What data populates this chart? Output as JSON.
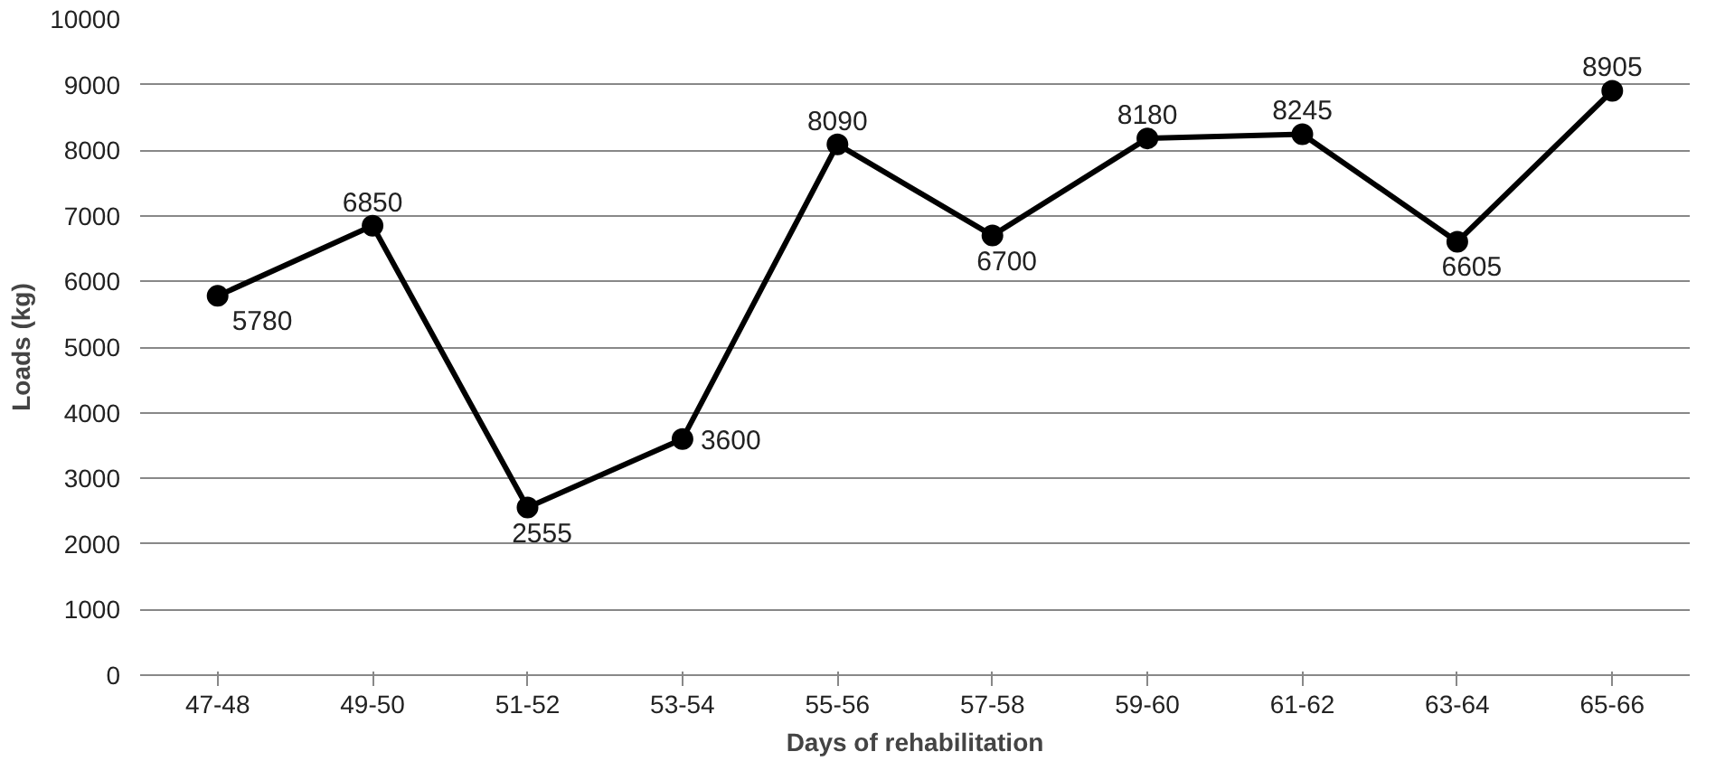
{
  "chart_data": {
    "type": "line",
    "xlabel": "Days of rehabilitation",
    "ylabel": "Loads (kg)",
    "categories": [
      "47-48",
      "49-50",
      "51-52",
      "53-54",
      "55-56",
      "57-58",
      "59-60",
      "61-62",
      "63-64",
      "65-66"
    ],
    "series": [
      {
        "color": "#000000",
        "values": [
          5780,
          6850,
          2555,
          3600,
          8090,
          6700,
          8180,
          8245,
          6605,
          8905
        ]
      }
    ],
    "ylim": [
      0,
      10000
    ],
    "yticks": [
      0,
      1000,
      2000,
      3000,
      4000,
      5000,
      6000,
      7000,
      8000,
      9000,
      10000
    ],
    "grid": "y",
    "marker": "circle",
    "line_style": "solid",
    "data_labels": true
  }
}
